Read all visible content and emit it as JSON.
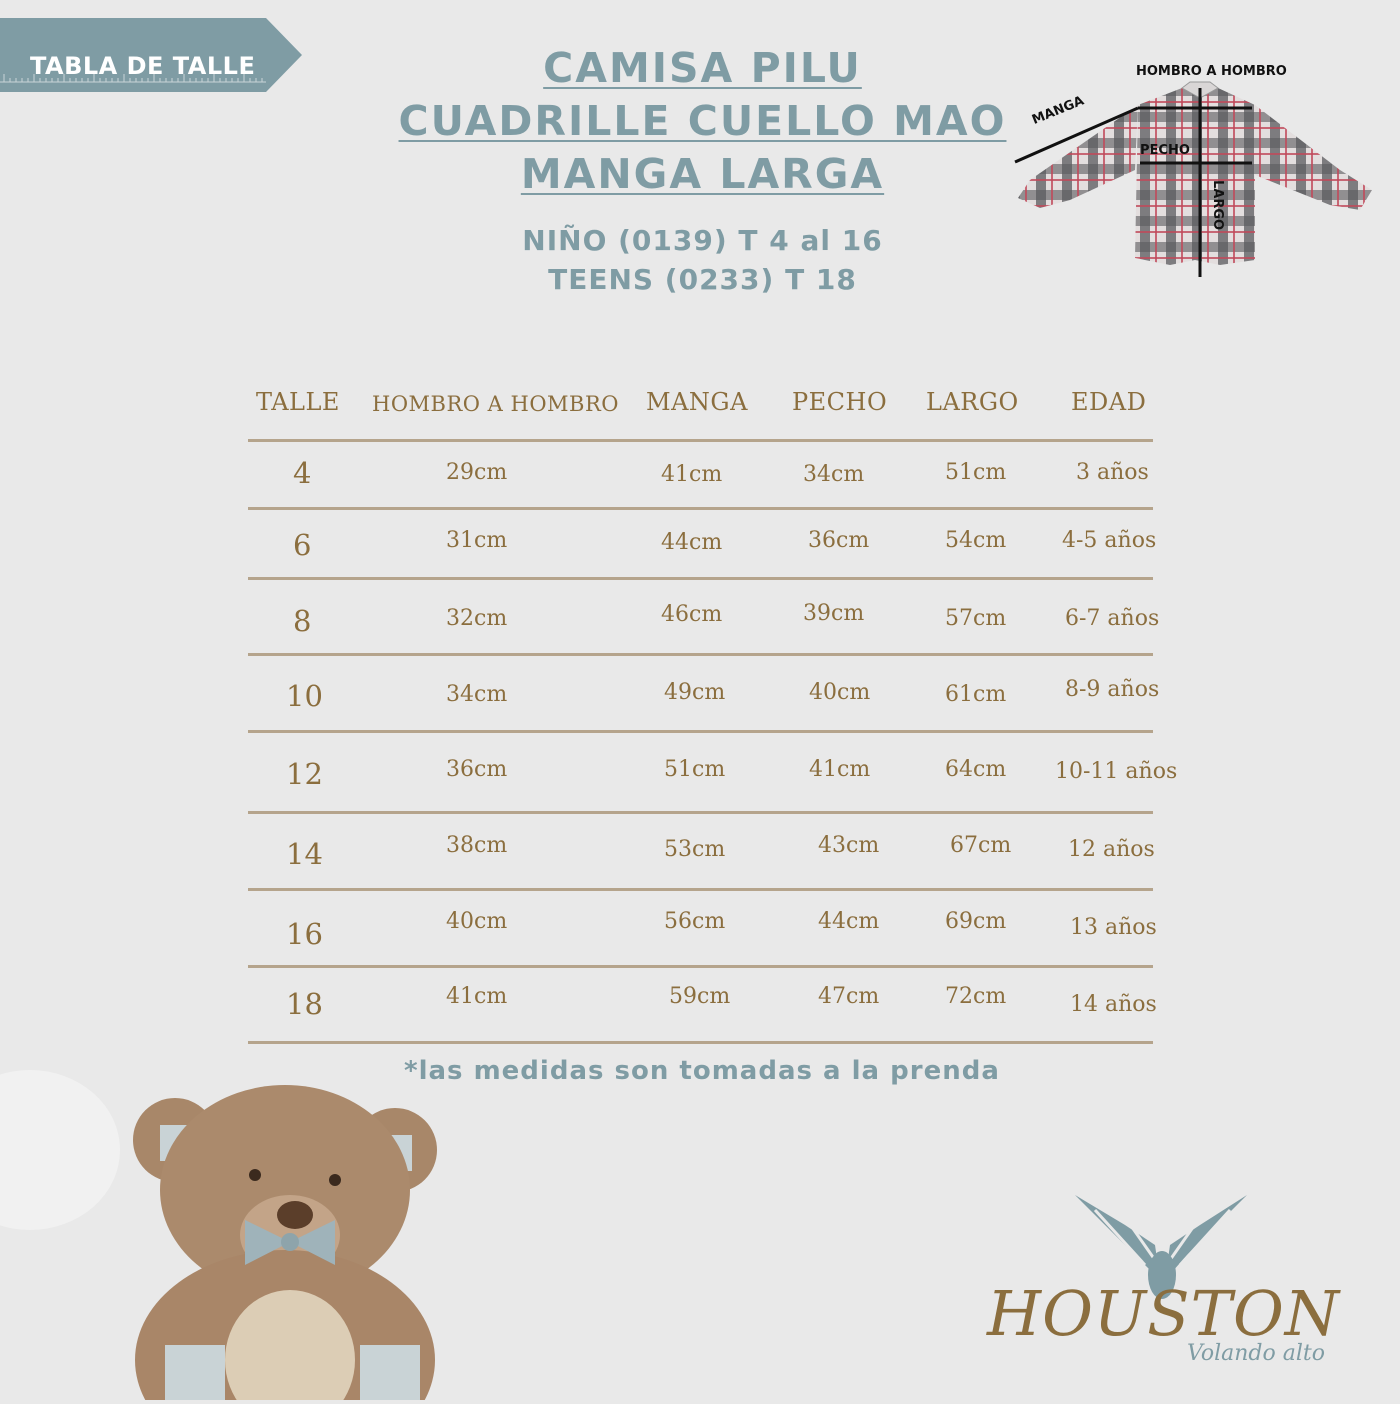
{
  "ribbon": {
    "label": "TABLA DE TALLE"
  },
  "title": {
    "lines": [
      "CAMISA PILU",
      "CUADRILLE CUELLO MAO",
      "MANGA LARGA"
    ],
    "subtitles": [
      "NIÑO (0139) T 4 al 16",
      "TEENS (0233) T 18"
    ]
  },
  "diagram": {
    "hombro": "HOMBRO A HOMBRO",
    "manga": "MANGA",
    "pecho": "PECHO",
    "largo": "LARGO"
  },
  "table": {
    "headers": [
      "TALLE",
      "HOMBRO A HOMBRO",
      "MANGA",
      "PECHO",
      "LARGO",
      "EDAD"
    ],
    "rows": [
      [
        "4",
        "29cm",
        "41cm",
        "34cm",
        "51cm",
        "3 años"
      ],
      [
        "6",
        "31cm",
        "44cm",
        "36cm",
        "54cm",
        "4-5 años"
      ],
      [
        "8",
        "32cm",
        "46cm",
        "39cm",
        "57cm",
        "6-7 años"
      ],
      [
        "10",
        "34cm",
        "49cm",
        "40cm",
        "61cm",
        "8-9 años"
      ],
      [
        "12",
        "36cm",
        "51cm",
        "41cm",
        "64cm",
        "10-11 años"
      ],
      [
        "14",
        "38cm",
        "53cm",
        "43cm",
        "67cm",
        "12 años"
      ],
      [
        "16",
        "40cm",
        "56cm",
        "44cm",
        "69cm",
        "13 años"
      ],
      [
        "18",
        "41cm",
        "59cm",
        "47cm",
        "72cm",
        "14 años"
      ]
    ]
  },
  "footnote": "*las medidas son tomadas a la prenda",
  "brand": {
    "name": "HOUSTON",
    "tagline": "Volando alto"
  },
  "colors": {
    "slate_blue": "#7f9ca4",
    "gold_brown": "#8b6e3e",
    "background": "#e9e9e9"
  }
}
